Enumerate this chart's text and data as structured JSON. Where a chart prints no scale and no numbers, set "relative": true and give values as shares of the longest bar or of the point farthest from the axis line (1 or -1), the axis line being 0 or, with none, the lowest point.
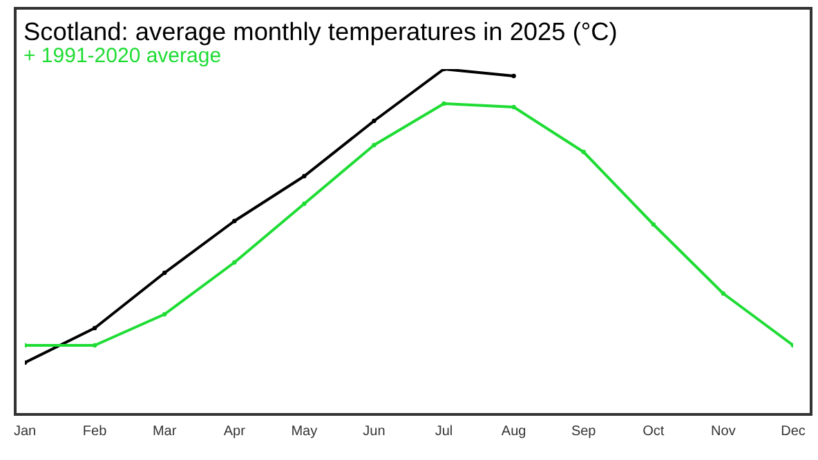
{
  "chart_data": {
    "type": "line",
    "title": "Scotland: average monthly temperatures in 2025 (°C)",
    "subtitle": "+ 1991-2020 average",
    "relative": true,
    "categories": [
      "Jan",
      "Feb",
      "Mar",
      "Apr",
      "May",
      "Jun",
      "Jul",
      "Aug",
      "Sep",
      "Oct",
      "Nov",
      "Dec"
    ],
    "series": [
      {
        "color": "#000000",
        "values": [
          0.15,
          0.25,
          0.41,
          0.56,
          0.69,
          0.85,
          1,
          0.98,
          null,
          null,
          null,
          null
        ]
      },
      {
        "color": "#1fdc35",
        "values": [
          0.2,
          0.2,
          0.29,
          0.44,
          0.61,
          0.78,
          0.9,
          0.89,
          0.76,
          0.55,
          0.35,
          0.2
        ]
      }
    ],
    "marker": "circle",
    "line_style": "solid",
    "grid": false,
    "legend": false
  }
}
